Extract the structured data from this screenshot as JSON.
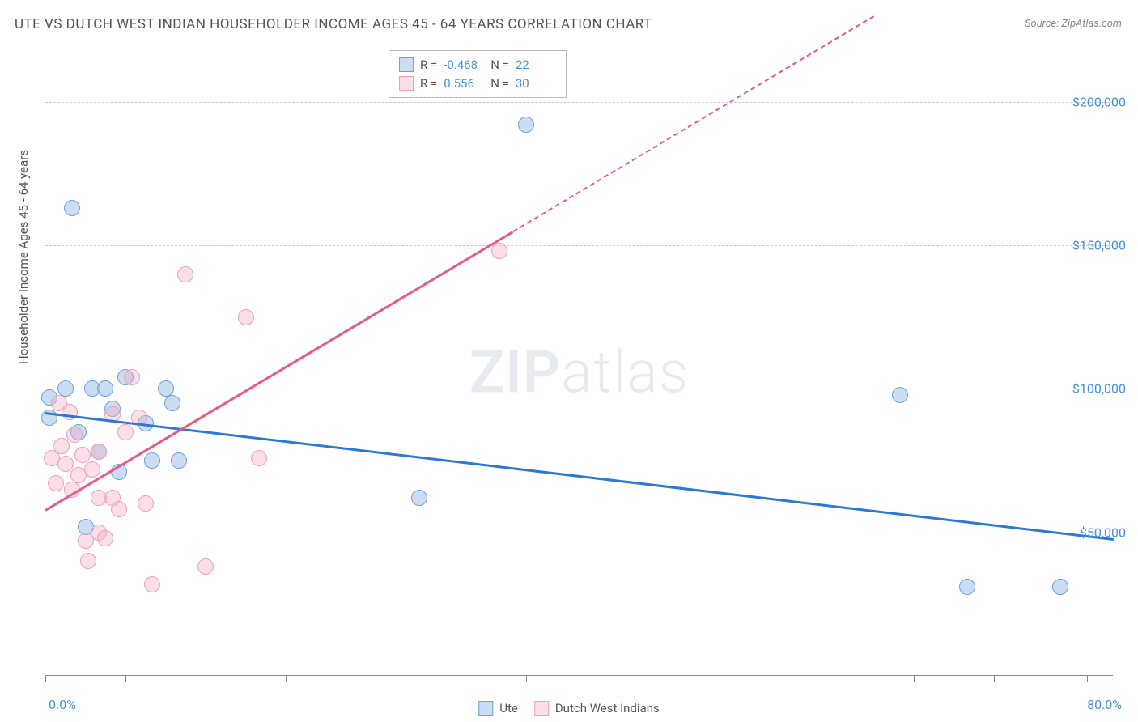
{
  "title": "UTE VS DUTCH WEST INDIAN HOUSEHOLDER INCOME AGES 45 - 64 YEARS CORRELATION CHART",
  "source": "Source: ZipAtlas.com",
  "y_axis_title": "Householder Income Ages 45 - 64 years",
  "watermark_bold": "ZIP",
  "watermark_light": "atlas",
  "chart": {
    "type": "scatter",
    "background_color": "#ffffff",
    "grid_color": "#cccccc",
    "axis_color": "#888888",
    "xlim": [
      0,
      80
    ],
    "ylim": [
      0,
      220000
    ],
    "x_tick_label_left": "0.0%",
    "x_tick_label_right": "80.0%",
    "x_ticks_pct": [
      0,
      6,
      12,
      18,
      36,
      65,
      71,
      78
    ],
    "y_gridlines": [
      50000,
      100000,
      150000,
      200000
    ],
    "y_tick_labels": [
      "$50,000",
      "$100,000",
      "$150,000",
      "$200,000"
    ],
    "label_fontsize": 16,
    "label_color": "#4a90e2",
    "title_fontsize": 17,
    "title_color": "#555555",
    "point_radius": 10,
    "blue_fill": "rgba(137,179,228,0.45)",
    "blue_stroke": "#6aa3dd",
    "pink_fill": "rgba(244,174,192,0.4)",
    "pink_stroke": "#f0a0b8",
    "line_blue": "#2b78d6",
    "line_pink": "#e85a8a"
  },
  "series": [
    {
      "name": "Ute",
      "color_key": "blue",
      "r_label": "R =",
      "r_value": "-0.468",
      "n_label": "N =",
      "n_value": "22",
      "trend": {
        "x1": 0,
        "y1": 92000,
        "x2": 80,
        "y2": 48000,
        "solid": true
      },
      "points": [
        {
          "x": 0.3,
          "y": 90000
        },
        {
          "x": 0.3,
          "y": 97000
        },
        {
          "x": 1.5,
          "y": 100000
        },
        {
          "x": 2.0,
          "y": 163000
        },
        {
          "x": 2.5,
          "y": 85000
        },
        {
          "x": 3.0,
          "y": 52000
        },
        {
          "x": 3.5,
          "y": 100000
        },
        {
          "x": 4.0,
          "y": 78000
        },
        {
          "x": 4.5,
          "y": 100000
        },
        {
          "x": 5.0,
          "y": 93000
        },
        {
          "x": 5.5,
          "y": 71000
        },
        {
          "x": 6.0,
          "y": 104000
        },
        {
          "x": 7.5,
          "y": 88000
        },
        {
          "x": 8.0,
          "y": 75000
        },
        {
          "x": 9.0,
          "y": 100000
        },
        {
          "x": 9.5,
          "y": 95000
        },
        {
          "x": 10,
          "y": 75000
        },
        {
          "x": 28,
          "y": 62000
        },
        {
          "x": 64,
          "y": 98000
        },
        {
          "x": 69,
          "y": 31000
        },
        {
          "x": 76,
          "y": 31000
        },
        {
          "x": 36,
          "y": 192000
        }
      ]
    },
    {
      "name": "Dutch West Indians",
      "color_key": "pink",
      "r_label": "R =",
      "r_value": "0.556",
      "n_label": "N =",
      "n_value": "30",
      "trend": {
        "x1": 0,
        "y1": 58000,
        "x2": 35,
        "y2": 155000,
        "solid": true,
        "dash_to_x": 62,
        "dash_to_y": 230000
      },
      "points": [
        {
          "x": 0.5,
          "y": 76000
        },
        {
          "x": 0.8,
          "y": 67000
        },
        {
          "x": 1.0,
          "y": 95000
        },
        {
          "x": 1.2,
          "y": 80000
        },
        {
          "x": 1.5,
          "y": 74000
        },
        {
          "x": 1.8,
          "y": 92000
        },
        {
          "x": 2.0,
          "y": 65000
        },
        {
          "x": 2.2,
          "y": 84000
        },
        {
          "x": 2.5,
          "y": 70000
        },
        {
          "x": 2.8,
          "y": 77000
        },
        {
          "x": 3.0,
          "y": 47000
        },
        {
          "x": 3.2,
          "y": 40000
        },
        {
          "x": 3.5,
          "y": 72000
        },
        {
          "x": 4.0,
          "y": 50000
        },
        {
          "x": 4.0,
          "y": 62000
        },
        {
          "x": 4.0,
          "y": 78000
        },
        {
          "x": 4.5,
          "y": 48000
        },
        {
          "x": 5.0,
          "y": 62000
        },
        {
          "x": 5.0,
          "y": 91000
        },
        {
          "x": 5.5,
          "y": 58000
        },
        {
          "x": 6.0,
          "y": 85000
        },
        {
          "x": 6.5,
          "y": 104000
        },
        {
          "x": 7.0,
          "y": 90000
        },
        {
          "x": 7.5,
          "y": 60000
        },
        {
          "x": 8.0,
          "y": 32000
        },
        {
          "x": 10.5,
          "y": 140000
        },
        {
          "x": 12,
          "y": 38000
        },
        {
          "x": 15,
          "y": 125000
        },
        {
          "x": 16,
          "y": 76000
        },
        {
          "x": 34,
          "y": 148000
        }
      ]
    }
  ],
  "bottom_legend": [
    {
      "swatch": "blue",
      "label": "Ute"
    },
    {
      "swatch": "pink",
      "label": "Dutch West Indians"
    }
  ]
}
